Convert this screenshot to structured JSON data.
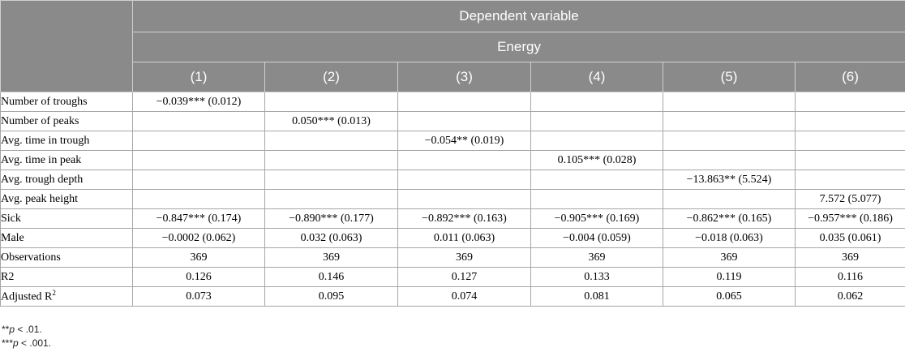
{
  "header": {
    "dependent_variable": "Dependent variable",
    "outcome": "Energy",
    "columns": [
      "(1)",
      "(2)",
      "(3)",
      "(4)",
      "(5)",
      "(6)"
    ]
  },
  "rows": [
    {
      "label": "Number of troughs",
      "cells": [
        "−0.039*** (0.012)",
        "",
        "",
        "",
        "",
        ""
      ]
    },
    {
      "label": "Number of peaks",
      "cells": [
        "",
        "0.050*** (0.013)",
        "",
        "",
        "",
        ""
      ]
    },
    {
      "label": "Avg. time in trough",
      "cells": [
        "",
        "",
        "−0.054** (0.019)",
        "",
        "",
        ""
      ]
    },
    {
      "label": "Avg. time in peak",
      "cells": [
        "",
        "",
        "",
        "0.105*** (0.028)",
        "",
        ""
      ]
    },
    {
      "label": "Avg. trough depth",
      "cells": [
        "",
        "",
        "",
        "",
        "−13.863** (5.524)",
        ""
      ]
    },
    {
      "label": "Avg. peak height",
      "cells": [
        "",
        "",
        "",
        "",
        "",
        "7.572 (5.077)"
      ]
    },
    {
      "label": "Sick",
      "cells": [
        "−0.847*** (0.174)",
        "−0.890*** (0.177)",
        "−0.892*** (0.163)",
        "−0.905*** (0.169)",
        "−0.862*** (0.165)",
        "−0.957*** (0.186)"
      ]
    },
    {
      "label": "Male",
      "cells": [
        "−0.0002 (0.062)",
        "0.032 (0.063)",
        "0.011 (0.063)",
        "−0.004 (0.059)",
        "−0.018 (0.063)",
        "0.035 (0.061)"
      ]
    },
    {
      "label": "Observations",
      "cells": [
        "369",
        "369",
        "369",
        "369",
        "369",
        "369"
      ]
    },
    {
      "label": "R2",
      "cells": [
        "0.126",
        "0.146",
        "0.127",
        "0.133",
        "0.119",
        "0.116"
      ]
    },
    {
      "label": "Adjusted R",
      "label_sup": "2",
      "cells": [
        "0.073",
        "0.095",
        "0.074",
        "0.081",
        "0.065",
        "0.062"
      ]
    }
  ],
  "notes": [
    {
      "stars": "**",
      "p": "p",
      "rest": " < .01."
    },
    {
      "stars": "***",
      "p": "p",
      "rest": " < .001."
    }
  ]
}
